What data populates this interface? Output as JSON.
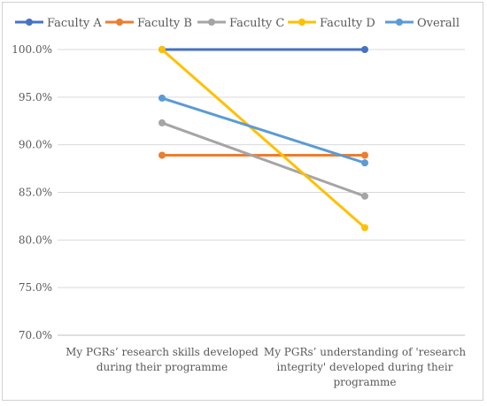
{
  "chart_data": {
    "type": "line",
    "title": "",
    "xlabel": "",
    "ylabel": "",
    "ylim": [
      70,
      100
    ],
    "yticks": [
      "100.0%",
      "95.0%",
      "90.0%",
      "85.0%",
      "80.0%",
      "75.0%",
      "70.0%"
    ],
    "ytick_values": [
      100,
      95,
      90,
      85,
      80,
      75,
      70
    ],
    "grid": true,
    "legend_position": "top",
    "categories": [
      [
        "My PGRs’ research skills developed",
        "during their programme"
      ],
      [
        "My PGRs’ understanding of 'research",
        "integrity' developed during their",
        "programme"
      ]
    ],
    "series": [
      {
        "name": "Faculty A",
        "color": "#4472C4",
        "values": [
          100.0,
          100.0
        ]
      },
      {
        "name": "Faculty B",
        "color": "#ED7D31",
        "values": [
          88.9,
          88.9
        ]
      },
      {
        "name": "Faculty C",
        "color": "#A5A5A5",
        "values": [
          92.3,
          84.6
        ]
      },
      {
        "name": "Faculty D",
        "color": "#FFC000",
        "values": [
          100.0,
          81.3
        ]
      },
      {
        "name": "Overall",
        "color": "#5B9BD5",
        "values": [
          94.9,
          88.1
        ]
      }
    ]
  }
}
